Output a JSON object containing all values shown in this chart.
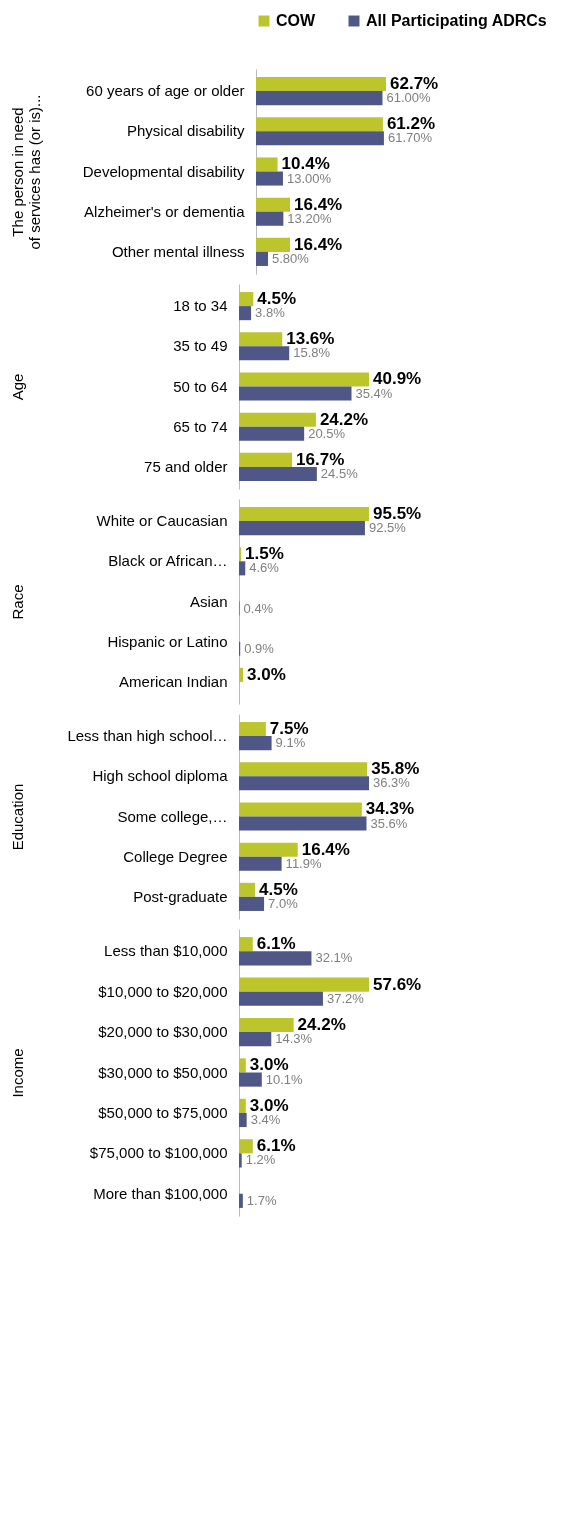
{
  "chart_data": [
    {
      "type": "bar",
      "orientation": "horizontal",
      "legend": "top",
      "ylabel": "The person in need\nof services has (or is)...",
      "categories": [
        "60 years of age or older",
        "Physical disability",
        "Developmental disability",
        "Alzheimer's or dementia",
        "Other mental illness"
      ],
      "series": [
        {
          "name": "COW",
          "color": "#bcc62c",
          "values": [
            62.7,
            61.2,
            10.4,
            16.4,
            16.4
          ],
          "value_labels": [
            "62.7%",
            "61.2%",
            "10.4%",
            "16.4%",
            "16.4%"
          ]
        },
        {
          "name": "All Participating ADRCs",
          "color": "#4f5787",
          "values": [
            61.0,
            61.7,
            13.0,
            13.2,
            5.8
          ],
          "value_labels": [
            "61.00%",
            "61.70%",
            "13.00%",
            "13.20%",
            "5.80%"
          ]
        }
      ]
    },
    {
      "type": "bar",
      "orientation": "horizontal",
      "ylabel": "Age",
      "categories": [
        "18 to 34",
        "35 to 49",
        "50 to 64",
        "65 to 74",
        "75 and older"
      ],
      "series": [
        {
          "color": "#bcc62c",
          "values": [
            4.5,
            13.6,
            40.9,
            24.2,
            16.7
          ],
          "value_labels": [
            "4.5%",
            "13.6%",
            "40.9%",
            "24.2%",
            "16.7%"
          ]
        },
        {
          "color": "#4f5787",
          "values": [
            3.8,
            15.8,
            35.4,
            20.5,
            24.5
          ],
          "value_labels": [
            "3.8%",
            "15.8%",
            "35.4%",
            "20.5%",
            "24.5%"
          ]
        }
      ]
    },
    {
      "type": "bar",
      "orientation": "horizontal",
      "ylabel": "Race",
      "categories": [
        "White or Caucasian",
        "Black or African…",
        "Asian",
        "Hispanic or Latino",
        "American Indian"
      ],
      "series": [
        {
          "color": "#bcc62c",
          "values": [
            95.5,
            1.5,
            null,
            null,
            3.0
          ],
          "value_labels": [
            "95.5%",
            "1.5%",
            null,
            null,
            "3.0%"
          ]
        },
        {
          "color": "#4f5787",
          "values": [
            92.5,
            4.6,
            0.4,
            0.9,
            null
          ],
          "value_labels": [
            "92.5%",
            "4.6%",
            "0.4%",
            "0.9%",
            null
          ]
        }
      ]
    },
    {
      "type": "bar",
      "orientation": "horizontal",
      "ylabel": "Education",
      "categories": [
        "Less than high school…",
        "High school diploma",
        "Some college,…",
        "College Degree",
        "Post-graduate"
      ],
      "series": [
        {
          "color": "#bcc62c",
          "values": [
            7.5,
            35.8,
            34.3,
            16.4,
            4.5
          ],
          "value_labels": [
            "7.5%",
            "35.8%",
            "34.3%",
            "16.4%",
            "4.5%"
          ]
        },
        {
          "color": "#4f5787",
          "values": [
            9.1,
            36.3,
            35.6,
            11.9,
            7.0
          ],
          "value_labels": [
            "9.1%",
            "36.3%",
            "35.6%",
            "11.9%",
            "7.0%"
          ]
        }
      ]
    },
    {
      "type": "bar",
      "orientation": "horizontal",
      "ylabel": "Income",
      "categories": [
        "Less than $10,000",
        "$10,000 to $20,000",
        "$20,000 to $30,000",
        "$30,000 to $50,000",
        "$50,000 to $75,000",
        "$75,000 to $100,000",
        "More than $100,000"
      ],
      "series": [
        {
          "color": "#bcc62c",
          "values": [
            6.1,
            57.6,
            24.2,
            3.0,
            3.0,
            6.1,
            null
          ],
          "value_labels": [
            "6.1%",
            "57.6%",
            "24.2%",
            "3.0%",
            "3.0%",
            "6.1%",
            null
          ]
        },
        {
          "color": "#4f5787",
          "values": [
            32.1,
            37.2,
            14.3,
            10.1,
            3.4,
            1.2,
            1.7
          ],
          "value_labels": [
            "32.1%",
            "37.2%",
            "14.3%",
            "10.1%",
            "3.4%",
            "1.2%",
            "1.7%"
          ]
        }
      ]
    }
  ]
}
